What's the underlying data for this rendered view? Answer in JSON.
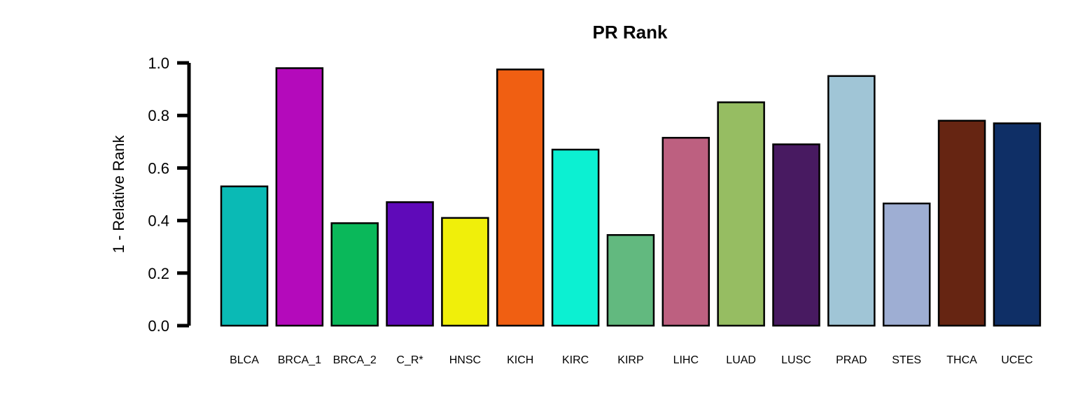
{
  "chart_data": {
    "type": "bar",
    "title": "PR Rank",
    "xlabel": "",
    "ylabel": "1 - Relative Rank",
    "ylim": [
      0,
      1.0
    ],
    "yticks": [
      "0.0",
      "0.2",
      "0.4",
      "0.6",
      "0.8",
      "1.0"
    ],
    "ytick_values": [
      0.0,
      0.2,
      0.4,
      0.6,
      0.8,
      1.0
    ],
    "grid": false,
    "legend": "none",
    "categories": [
      "BLCA",
      "BRCA_1",
      "BRCA_2",
      "C_R*",
      "HNSC",
      "KICH",
      "KIRC",
      "KIRP",
      "LIHC",
      "LUAD",
      "LUSC",
      "PRAD",
      "STES",
      "THCA",
      "UCEC"
    ],
    "values": [
      0.53,
      0.98,
      0.39,
      0.47,
      0.41,
      0.975,
      0.67,
      0.345,
      0.715,
      0.85,
      0.69,
      0.95,
      0.465,
      0.78,
      0.77
    ],
    "colors": [
      "#0abab5",
      "#b40abb",
      "#0ab85a",
      "#5f0ab9",
      "#f0ef0a",
      "#f05f12",
      "#0cf0d2",
      "#62b97f",
      "#bd6080",
      "#96bd62",
      "#481a61",
      "#a0c5d6",
      "#9eaed3",
      "#662512",
      "#0f2f66"
    ],
    "bar_edge_color": "#000000",
    "axis_color": "#000000"
  }
}
